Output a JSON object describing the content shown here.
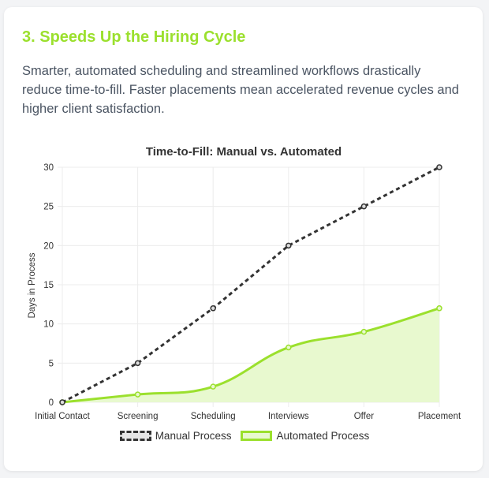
{
  "section": {
    "title": "3. Speeds Up the Hiring Cycle",
    "description": "Smarter, automated scheduling and streamlined workflows drastically reduce time-to-fill. Faster placements mean accelerated revenue cycles and higher client satisfaction."
  },
  "colors": {
    "accent": "#9be02d",
    "accent_fill": "#e8f9cf",
    "manual": "#333333"
  },
  "chart_data": {
    "type": "line",
    "title": "Time-to-Fill: Manual vs. Automated",
    "xlabel": "",
    "ylabel": "Days in Process",
    "categories": [
      "Initial Contact",
      "Screening",
      "Scheduling",
      "Interviews",
      "Offer",
      "Placement"
    ],
    "ylim": [
      0,
      30
    ],
    "yticks": [
      0,
      5,
      10,
      15,
      20,
      25,
      30
    ],
    "grid": true,
    "legend_position": "bottom",
    "series": [
      {
        "name": "Manual Process",
        "values": [
          0,
          5,
          12,
          20,
          25,
          30
        ],
        "style": "dashed"
      },
      {
        "name": "Automated Process",
        "values": [
          0,
          1,
          2,
          7,
          9,
          12
        ],
        "style": "area"
      }
    ]
  }
}
